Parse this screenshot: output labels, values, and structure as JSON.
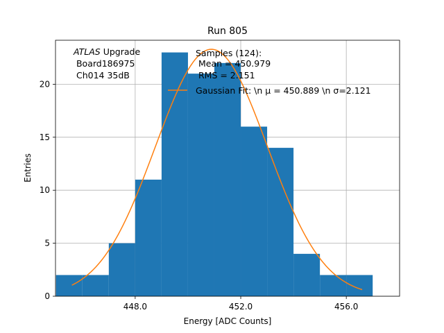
{
  "chart_data": {
    "type": "bar",
    "title": "Run 805",
    "xlabel": "Energy [ADC Counts]",
    "ylabel": "Entries",
    "xlim": [
      444.98,
      458.02
    ],
    "ylim": [
      0,
      24.15
    ],
    "grid": true,
    "x_ticks": [
      448.0,
      452.0,
      456.0
    ],
    "x_tick_labels": [
      "448.0",
      "452.0",
      "456.0"
    ],
    "y_ticks": [
      0,
      5,
      10,
      15,
      20
    ],
    "y_tick_labels": [
      "0",
      "5",
      "10",
      "15",
      "20"
    ],
    "histogram": {
      "name": "Samples (124):",
      "color": "#1f77b4",
      "bin_edges": [
        445,
        446,
        447,
        448,
        449,
        450,
        451,
        452,
        453,
        454,
        455,
        456,
        457
      ],
      "counts": [
        2,
        2,
        5,
        11,
        23,
        21,
        22,
        16,
        14,
        4,
        2,
        2
      ]
    },
    "fit": {
      "name": "Gaussian Fit: \\n $\\mu$ = 450.889 \\n $\\sigma$=2.121",
      "color": "#ff7f0e",
      "mu": 450.889,
      "sigma": 2.121,
      "amplitude": 23.3,
      "x_range": [
        445.6,
        456.6
      ]
    },
    "legend": {
      "placement": "top-right",
      "lines": [
        "Samples (124):",
        " Mean = 450.979",
        " RMS = 2.151",
        "Gaussian Fit: \\n μ = 450.889 \\n σ=2.121"
      ]
    },
    "annotation": {
      "atlas": "ATLAS",
      "upgrade": " Upgrade",
      "board": " Board186975",
      "channel": " Ch014 35dB"
    }
  }
}
